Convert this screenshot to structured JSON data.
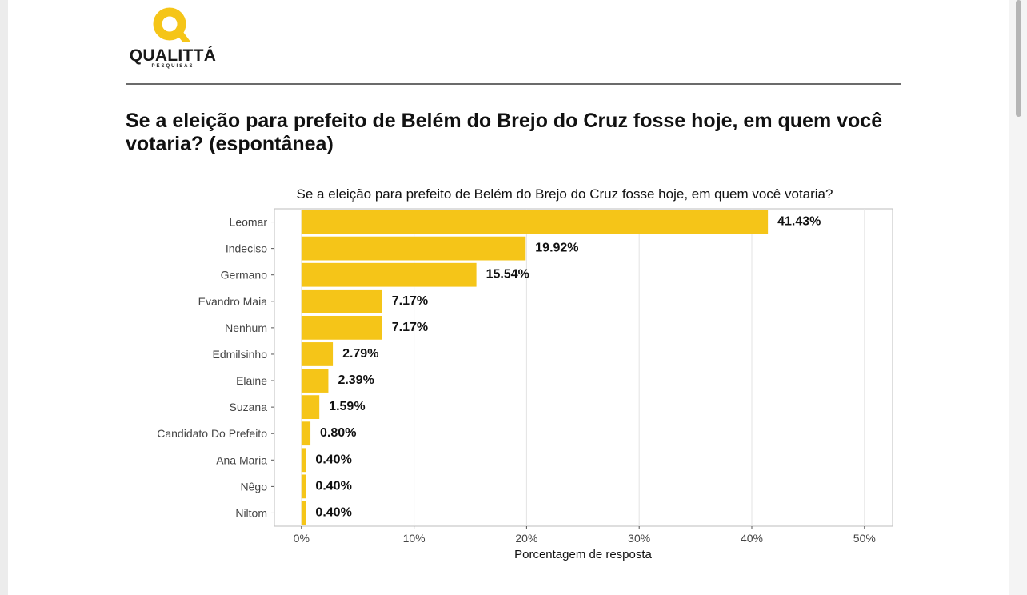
{
  "brand": {
    "name": "QUALITTÁ",
    "tagline": "PESQUISAS",
    "color": "#f5c518"
  },
  "heading": "Se a eleição para prefeito de Belém do Brejo do Cruz fosse hoje, em quem você votaria? (espontânea)",
  "chart_data": {
    "type": "bar",
    "orientation": "horizontal",
    "title": "Se a eleição para prefeito de Belém do Brejo do Cruz fosse hoje, em quem você votaria?",
    "xlabel": "Porcentagem de resposta",
    "ylabel": "",
    "categories": [
      "Leomar",
      "Indeciso",
      "Germano",
      "Evandro Maia",
      "Nenhum",
      "Edmilsinho",
      "Elaine",
      "Suzana",
      "Candidato Do Prefeito",
      "Ana Maria",
      "Nêgo",
      "Niltom"
    ],
    "values": [
      41.43,
      19.92,
      15.54,
      7.17,
      7.17,
      2.79,
      2.39,
      1.59,
      0.8,
      0.4,
      0.4,
      0.4
    ],
    "value_labels": [
      "41.43%",
      "19.92%",
      "15.54%",
      "7.17%",
      "7.17%",
      "2.79%",
      "2.39%",
      "1.59%",
      "0.80%",
      "0.40%",
      "0.40%",
      "0.40%"
    ],
    "xticks": [
      0,
      10,
      20,
      30,
      40,
      50
    ],
    "xtick_labels": [
      "0%",
      "10%",
      "20%",
      "30%",
      "40%",
      "50%"
    ],
    "xlim": [
      -2.4,
      52.5
    ],
    "grid": true,
    "bar_color": "#f5c518"
  }
}
